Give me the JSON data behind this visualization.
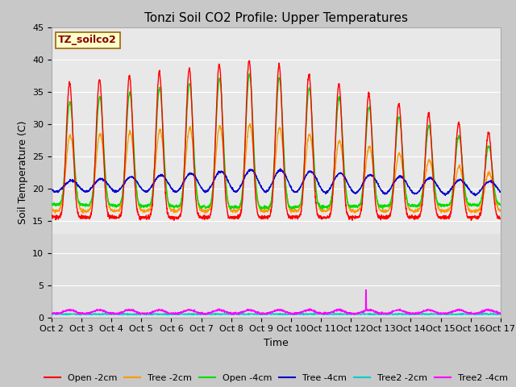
{
  "title": "Tonzi Soil CO2 Profile: Upper Temperatures",
  "xlabel": "Time",
  "ylabel": "Soil Temperature (C)",
  "ylim": [
    0,
    45
  ],
  "yticks": [
    0,
    5,
    10,
    15,
    20,
    25,
    30,
    35,
    40,
    45
  ],
  "xtick_labels": [
    "Oct 2",
    "Oct 3",
    "Oct 4",
    "Oct 5",
    "Oct 6",
    "Oct 7",
    "Oct 8",
    "Oct 9",
    "Oct 10",
    "Oct 11",
    "Oct 12",
    "Oct 13",
    "Oct 14",
    "Oct 15",
    "Oct 16",
    "Oct 17"
  ],
  "annotation_label": "TZ_soilco2",
  "annotation_color": "#ffffcc",
  "annotation_border": "#996600",
  "series_colors": [
    "#ff0000",
    "#ff9900",
    "#00dd00",
    "#0000cc",
    "#00cccc",
    "#ff00ff"
  ],
  "series_labels": [
    "Open -2cm",
    "Tree -2cm",
    "Open -4cm",
    "Tree -4cm",
    "Tree2 -2cm",
    "Tree2 -4cm"
  ],
  "fig_facecolor": "#c8c8c8",
  "plot_facecolor": "#e0e0e0",
  "upper_band_color": "#d8d8d8",
  "lower_band_color": "#c8c8c8",
  "grid_color": "#ffffff",
  "title_fontsize": 11,
  "axis_fontsize": 9,
  "tick_fontsize": 8,
  "legend_fontsize": 8,
  "n_days": 15,
  "spike_day": 10.5
}
